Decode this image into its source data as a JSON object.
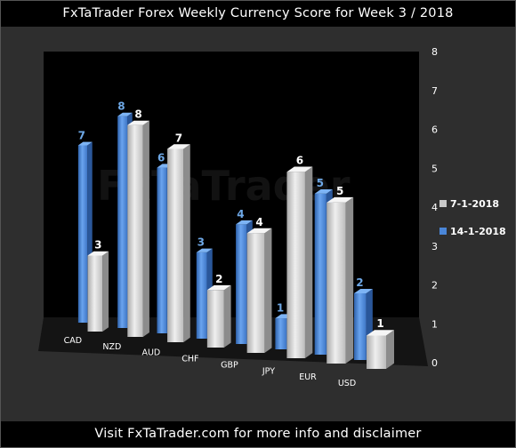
{
  "header": {
    "title": "FxTaTrader Forex Weekly Currency Score for Week 3 / 2018"
  },
  "footer": {
    "text": "Visit FxTaTrader.com for more info and disclaimer"
  },
  "watermark": "FxTaTrader",
  "colors": {
    "older": "#c8c8c8",
    "newer": "#4a86d8",
    "background": "#000000",
    "panel": "#2e2e2e"
  },
  "chart_data": {
    "type": "bar",
    "title": "FxTaTrader Forex Weekly Currency Score for Week 3 / 2018",
    "categories": [
      "CAD",
      "NZD",
      "AUD",
      "CHF",
      "GBP",
      "JPY",
      "EUR",
      "USD"
    ],
    "series": [
      {
        "name": "14-1-2018",
        "values": [
          7,
          8,
          6,
          3,
          4,
          1,
          5,
          2
        ]
      },
      {
        "name": "7-1-2018",
        "values": [
          3,
          8,
          7,
          2,
          4,
          6,
          5,
          1
        ]
      }
    ],
    "ylim": [
      0,
      8
    ],
    "yticks": [
      "0",
      "1",
      "2",
      "3",
      "4",
      "5",
      "6",
      "7",
      "8"
    ],
    "legend": "right",
    "style": "3d-columns"
  }
}
